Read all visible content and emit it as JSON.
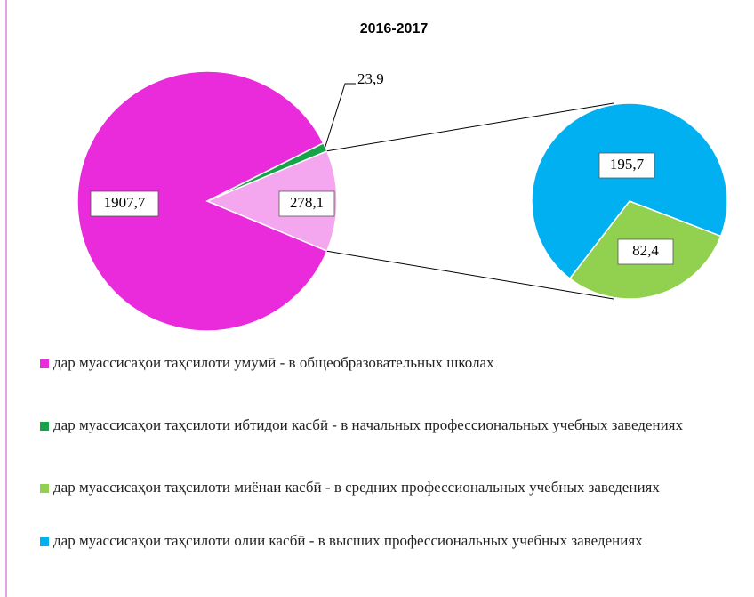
{
  "chart_data": {
    "type": "pie",
    "title": "2016-2017",
    "categories": [
      "дар муассисаҳои таҳсилоти умумӣ - в общеобразовательных школах",
      "дар муассисаҳои таҳсилоти ибтидои касбӣ - в начальных профессиональных учебных заведениях",
      "дар муассисаҳои таҳсилоти миёнаи касбӣ - в средних профессиональных учебных заведениях",
      "дар муассисаҳои таҳсилоти олии касбӣ - в высших профессиональных учебных заведениях"
    ],
    "values": [
      1907.7,
      23.9,
      82.4,
      195.7
    ],
    "value_labels": [
      "1907,7",
      "23,9",
      "82,4",
      "195,7"
    ],
    "colors": [
      "#ea2bdc",
      "#17a34a",
      "#92d050",
      "#00b0f0"
    ],
    "second_pie": [
      2,
      3
    ],
    "combined": {
      "value": 278.1,
      "label": "278,1",
      "color": "#f4a6ee"
    },
    "legend": "bottom"
  }
}
